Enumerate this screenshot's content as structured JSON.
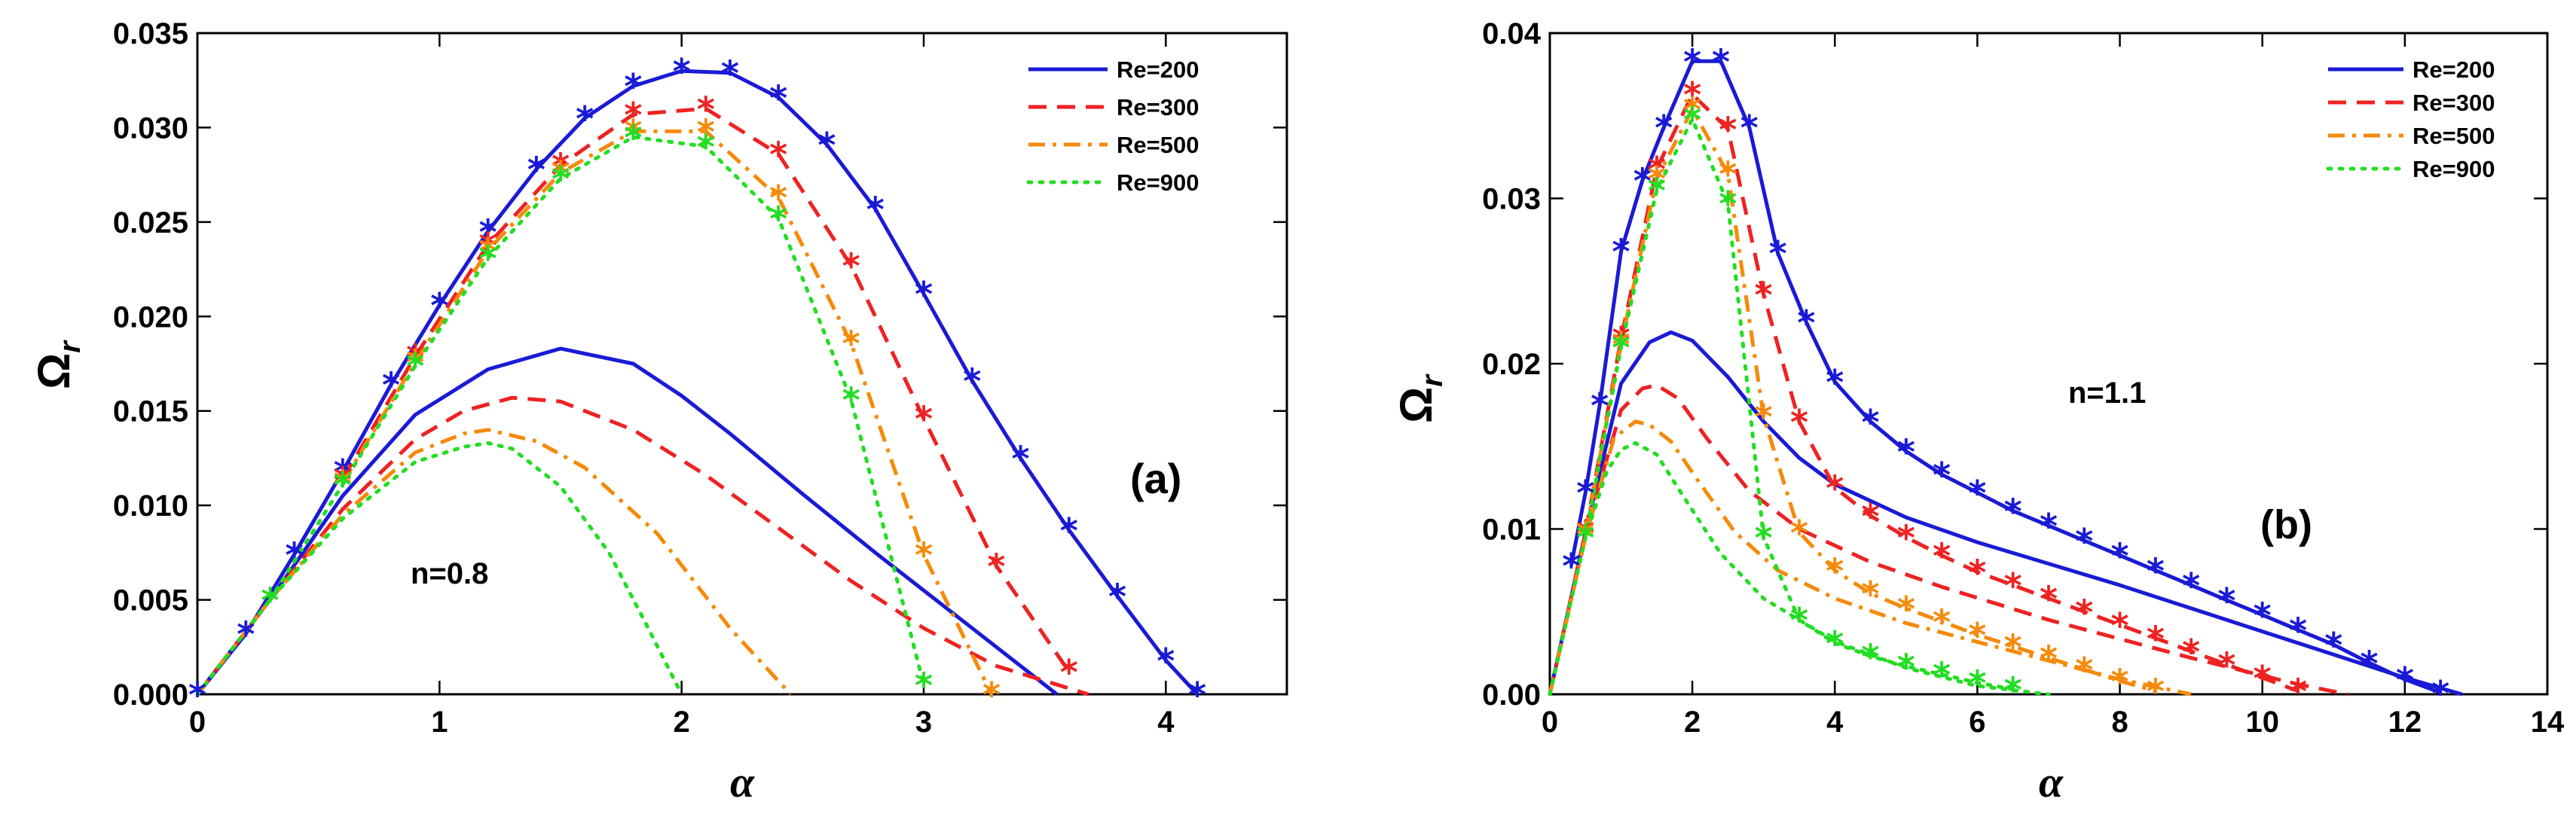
{
  "chart_data": [
    {
      "type": "line",
      "panel_label": "(a)",
      "annotation": "n=0.8",
      "xlabel": "α",
      "ylabel": "Ωr",
      "ylabel_main": "Ω",
      "ylabel_sub": "r",
      "xlim": [
        0,
        4.5
      ],
      "ylim": [
        0,
        0.035
      ],
      "xticks": [
        "0",
        "1",
        "2",
        "3",
        "4"
      ],
      "xtick_values": [
        0,
        1,
        2,
        3,
        4
      ],
      "yticks": [
        "0.000",
        "0.005",
        "0.010",
        "0.015",
        "0.020",
        "0.025",
        "0.030",
        "0.035"
      ],
      "ytick_values": [
        0,
        0.005,
        0.01,
        0.015,
        0.02,
        0.025,
        0.03,
        0.035
      ],
      "legend": [
        "Re=200",
        "Re=300",
        "Re=500",
        "Re=900"
      ],
      "series": [
        {
          "name": "Re=200",
          "color": "#1a1ad6",
          "dash": "solid",
          "curve_x": [
            0,
            0.3,
            0.6,
            0.9,
            1.2,
            1.5,
            1.8,
            2.0,
            2.2,
            2.5,
            2.8,
            3.2,
            3.55
          ],
          "curve_y": [
            0,
            0.005,
            0.0105,
            0.0148,
            0.0172,
            0.0183,
            0.0175,
            0.0158,
            0.0138,
            0.0106,
            0.0075,
            0.0035,
            0
          ],
          "star_x": [
            0,
            0.2,
            0.4,
            0.6,
            0.8,
            1.0,
            1.2,
            1.4,
            1.6,
            1.8,
            2.0,
            2.2,
            2.4,
            2.6,
            2.8,
            3.0,
            3.2,
            3.4,
            3.6,
            3.8,
            4.0,
            4.13
          ],
          "star_y": [
            0,
            0.0032,
            0.0074,
            0.0118,
            0.0164,
            0.0206,
            0.0245,
            0.0278,
            0.0305,
            0.0322,
            0.033,
            0.0329,
            0.0316,
            0.0291,
            0.0257,
            0.0212,
            0.0166,
            0.0125,
            0.0087,
            0.0052,
            0.0018,
            0
          ]
        },
        {
          "name": "Re=300",
          "color": "#ee2222",
          "dash": "dashed",
          "curve_x": [
            0,
            0.3,
            0.6,
            0.9,
            1.1,
            1.3,
            1.5,
            1.8,
            2.1,
            2.4,
            2.7,
            3.0,
            3.3,
            3.68
          ],
          "curve_y": [
            0,
            0.005,
            0.0098,
            0.0135,
            0.015,
            0.0157,
            0.0155,
            0.014,
            0.0116,
            0.0088,
            0.006,
            0.0035,
            0.0015,
            0
          ],
          "star_x": [
            0.6,
            0.9,
            1.2,
            1.5,
            1.8,
            2.1,
            2.4,
            2.7,
            3.0,
            3.3,
            3.6
          ],
          "star_y": [
            0.0114,
            0.0179,
            0.0238,
            0.028,
            0.0307,
            0.031,
            0.0286,
            0.0227,
            0.0146,
            0.0068,
            0.0012
          ]
        },
        {
          "name": "Re=500",
          "color": "#f58a0a",
          "dash": "dashdot",
          "curve_x": [
            0,
            0.3,
            0.6,
            0.9,
            1.1,
            1.2,
            1.4,
            1.6,
            1.9,
            2.2,
            2.45
          ],
          "curve_y": [
            0,
            0.005,
            0.0095,
            0.0128,
            0.0138,
            0.014,
            0.0134,
            0.012,
            0.0085,
            0.0035,
            0
          ],
          "star_x": [
            0.6,
            0.9,
            1.2,
            1.5,
            1.8,
            2.1,
            2.4,
            2.7,
            3.0,
            3.28
          ],
          "star_y": [
            0.0112,
            0.0176,
            0.0235,
            0.0276,
            0.0298,
            0.0298,
            0.0263,
            0.0186,
            0.0074,
            0
          ]
        },
        {
          "name": "Re=900",
          "color": "#22dd22",
          "dash": "dotted",
          "curve_x": [
            0,
            0.3,
            0.6,
            0.9,
            1.1,
            1.2,
            1.3,
            1.5,
            1.7,
            1.85,
            2.0
          ],
          "curve_y": [
            0,
            0.005,
            0.0093,
            0.0123,
            0.0131,
            0.0133,
            0.013,
            0.011,
            0.0075,
            0.0038,
            0
          ],
          "star_x": [
            0.3,
            0.6,
            0.9,
            1.2,
            1.5,
            1.8,
            2.1,
            2.4,
            2.7,
            3.0
          ],
          "star_y": [
            0.005,
            0.0111,
            0.0174,
            0.0231,
            0.0273,
            0.0295,
            0.029,
            0.0252,
            0.0156,
            0.0005
          ]
        }
      ]
    },
    {
      "type": "line",
      "panel_label": "(b)",
      "annotation": "n=1.1",
      "xlabel": "α",
      "ylabel": "Ωr",
      "ylabel_main": "Ω",
      "ylabel_sub": "r",
      "xlim": [
        0,
        14
      ],
      "ylim": [
        0,
        0.04
      ],
      "xticks": [
        "0",
        "2",
        "4",
        "6",
        "8",
        "10",
        "12",
        "14"
      ],
      "xtick_values": [
        0,
        2,
        4,
        6,
        8,
        10,
        12,
        14
      ],
      "yticks": [
        "0.00",
        "0.01",
        "0.02",
        "0.03",
        "0.04"
      ],
      "ytick_values": [
        0,
        0.01,
        0.02,
        0.03,
        0.04
      ],
      "legend": [
        "Re=200",
        "Re=300",
        "Re=500",
        "Re=900"
      ],
      "series": [
        {
          "name": "Re=200",
          "color": "#1a1ad6",
          "dash": "solid",
          "curve_x": [
            0,
            0.5,
            1.0,
            1.4,
            1.7,
            2.0,
            2.5,
            3.0,
            3.5,
            4.0,
            5.0,
            6.0,
            8.0,
            10.0,
            12.0,
            12.8
          ],
          "curve_y": [
            0,
            0.0098,
            0.0188,
            0.0213,
            0.0219,
            0.0214,
            0.0192,
            0.0165,
            0.0143,
            0.0127,
            0.0107,
            0.0092,
            0.0066,
            0.0038,
            0.001,
            0
          ],
          "star_x": [
            0.3,
            0.5,
            0.7,
            1.0,
            1.3,
            1.6,
            2.0,
            2.4,
            2.8,
            3.2,
            3.6,
            4.0,
            4.5,
            5.0,
            5.5,
            6.0,
            6.5,
            7.0,
            7.5,
            8.0,
            8.5,
            9.0,
            9.5,
            10.0,
            10.5,
            11.0,
            11.5,
            12.0,
            12.5
          ],
          "star_y": [
            0.0078,
            0.0122,
            0.0175,
            0.0268,
            0.0311,
            0.0343,
            0.0383,
            0.0383,
            0.0343,
            0.0267,
            0.0225,
            0.0189,
            0.0165,
            0.0147,
            0.0133,
            0.0122,
            0.0111,
            0.0102,
            0.0093,
            0.0084,
            0.0075,
            0.0066,
            0.0057,
            0.0048,
            0.0039,
            0.003,
            0.0019,
            0.0009,
            0.0001
          ]
        },
        {
          "name": "Re=300",
          "color": "#ee2222",
          "dash": "dashed",
          "curve_x": [
            0,
            0.5,
            1.0,
            1.3,
            1.5,
            1.8,
            2.2,
            2.8,
            3.5,
            4.5,
            5.5,
            7.0,
            9.0,
            10.5,
            11.2
          ],
          "curve_y": [
            0,
            0.0098,
            0.0172,
            0.0185,
            0.0187,
            0.0179,
            0.0155,
            0.0123,
            0.01,
            0.008,
            0.0065,
            0.0045,
            0.0022,
            0.0006,
            0
          ],
          "star_x": [
            0.5,
            1.0,
            1.5,
            2.0,
            2.5,
            3.0,
            3.5,
            4.0,
            4.5,
            5.0,
            5.5,
            6.0,
            6.5,
            7.0,
            7.5,
            8.0,
            8.5,
            9.0,
            9.5,
            10.0,
            10.5
          ],
          "star_y": [
            0.0098,
            0.0215,
            0.0318,
            0.0363,
            0.0342,
            0.0242,
            0.0165,
            0.0125,
            0.0108,
            0.0095,
            0.0084,
            0.0074,
            0.0066,
            0.0058,
            0.005,
            0.0042,
            0.0034,
            0.0026,
            0.0018,
            0.001,
            0.0002
          ]
        },
        {
          "name": "Re=500",
          "color": "#f58a0a",
          "dash": "dashdot",
          "curve_x": [
            0,
            0.5,
            0.9,
            1.2,
            1.4,
            1.7,
            2.1,
            2.6,
            3.2,
            4.0,
            5.0,
            6.5,
            8.0,
            9.0
          ],
          "curve_y": [
            0,
            0.0095,
            0.0155,
            0.0165,
            0.0163,
            0.0153,
            0.0128,
            0.0098,
            0.0075,
            0.0058,
            0.0043,
            0.0026,
            0.0009,
            0
          ],
          "star_x": [
            0.5,
            1.0,
            1.5,
            2.0,
            2.5,
            3.0,
            3.5,
            4.0,
            4.5,
            5.0,
            5.5,
            6.0,
            6.5,
            7.0,
            7.5,
            8.0,
            8.5
          ],
          "star_y": [
            0.0097,
            0.0212,
            0.0312,
            0.0354,
            0.0315,
            0.0168,
            0.0098,
            0.0075,
            0.0061,
            0.0052,
            0.0044,
            0.0036,
            0.0029,
            0.0022,
            0.0015,
            0.0008,
            0.0002
          ]
        },
        {
          "name": "Re=900",
          "color": "#22dd22",
          "dash": "dotted",
          "curve_x": [
            0,
            0.5,
            0.8,
            1.0,
            1.2,
            1.5,
            1.9,
            2.4,
            3.0,
            4.0,
            5.0,
            6.0,
            7.0
          ],
          "curve_y": [
            0,
            0.0095,
            0.0135,
            0.0148,
            0.0152,
            0.0145,
            0.0118,
            0.0085,
            0.0058,
            0.0032,
            0.0016,
            0.0005,
            0
          ],
          "star_x": [
            0.5,
            1.0,
            1.5,
            2.0,
            2.5,
            3.0,
            3.5,
            4.0,
            4.5,
            5.0,
            5.5,
            6.0,
            6.5
          ],
          "star_y": [
            0.0095,
            0.021,
            0.0305,
            0.0348,
            0.0297,
            0.0095,
            0.0045,
            0.0031,
            0.0023,
            0.0017,
            0.0012,
            0.0007,
            0.0003
          ]
        }
      ]
    }
  ]
}
